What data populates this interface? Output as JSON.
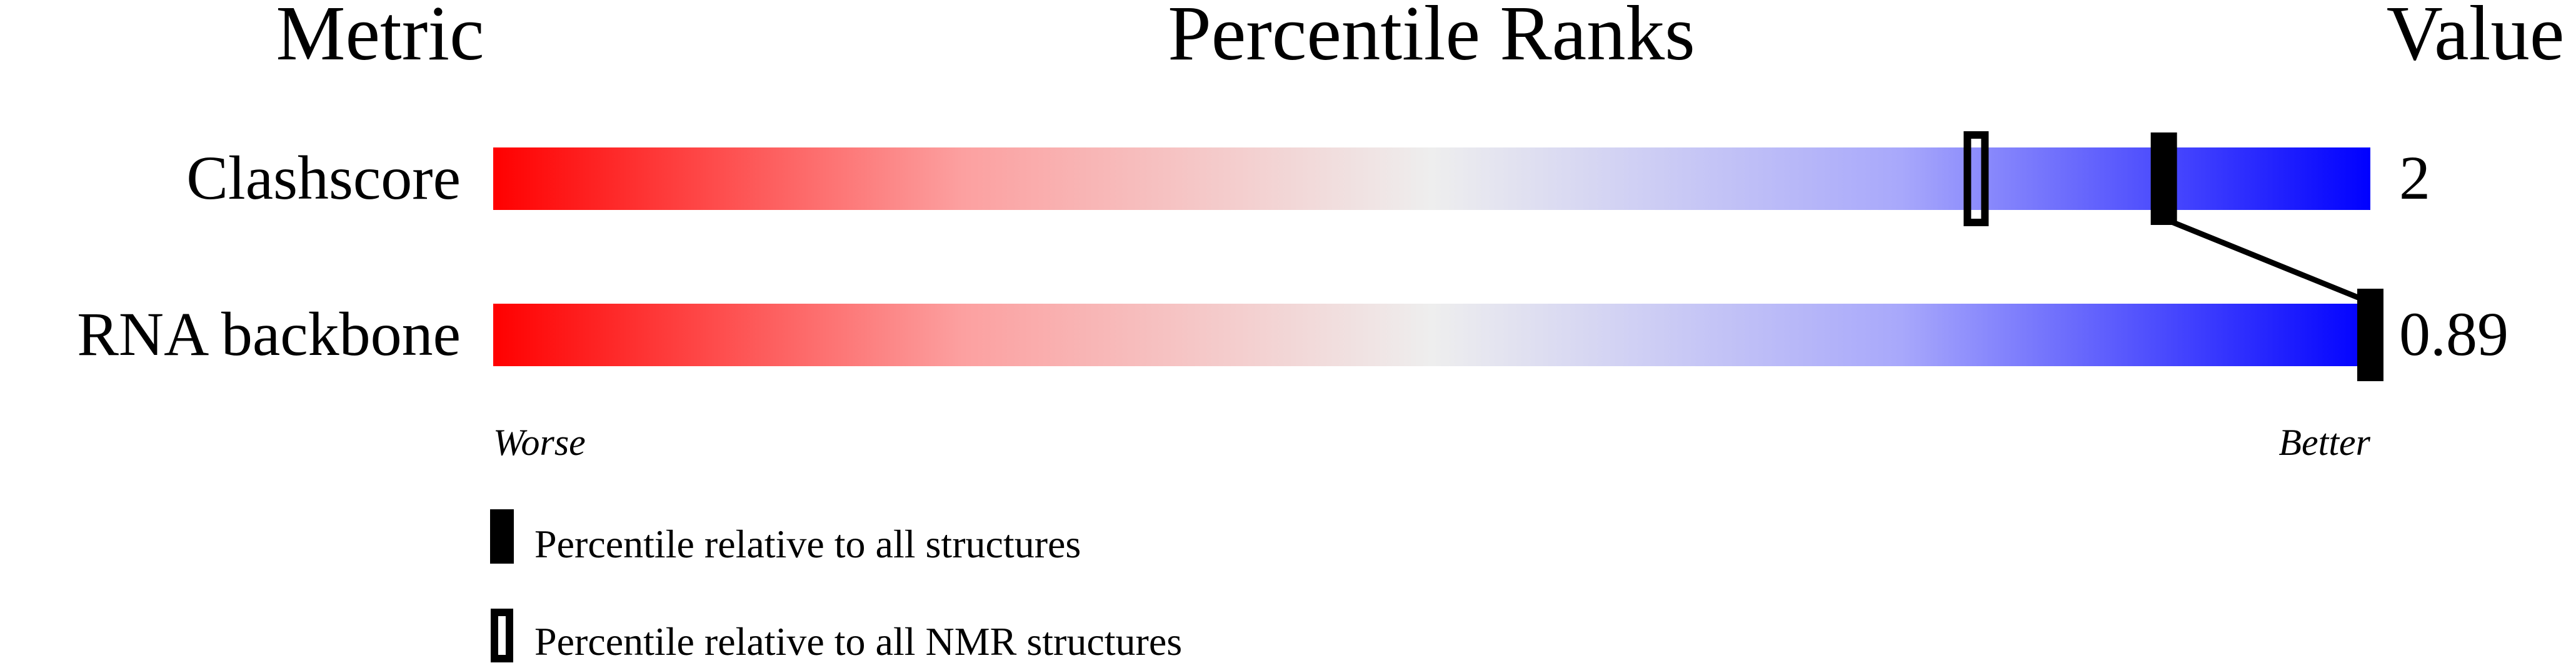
{
  "chart_data": {
    "type": "bar",
    "headers": {
      "metric": "Metric",
      "ranks": "Percentile Ranks",
      "value": "Value"
    },
    "rows": [
      {
        "metric": "Clashscore",
        "value": "2",
        "percentile_all": 89,
        "percentile_nmr": 79
      },
      {
        "metric": "RNA backbone",
        "value": "0.89",
        "percentile_all": 100,
        "percentile_nmr": null
      }
    ],
    "xlim": [
      0,
      100
    ],
    "axis_labels": {
      "worse": "Worse",
      "better": "Better"
    },
    "gradient_colors": [
      "#ff0000",
      "#eeeeee",
      "#0000ff"
    ],
    "legend": [
      {
        "marker": "filled",
        "label": "Percentile relative to all structures"
      },
      {
        "marker": "open",
        "label": "Percentile relative to all NMR structures"
      }
    ]
  }
}
